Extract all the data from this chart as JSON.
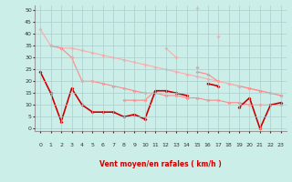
{
  "bg_color": "#cceee8",
  "grid_color": "#aacccc",
  "xlabel": "Vent moyen/en rafales ( km/h )",
  "xlim": [
    -0.5,
    23.5
  ],
  "ylim": [
    -1,
    52
  ],
  "yticks": [
    0,
    5,
    10,
    15,
    20,
    25,
    30,
    35,
    40,
    45,
    50
  ],
  "xticks": [
    0,
    1,
    2,
    3,
    4,
    5,
    6,
    7,
    8,
    9,
    10,
    11,
    12,
    13,
    14,
    15,
    16,
    17,
    18,
    19,
    20,
    21,
    22,
    23
  ],
  "series": [
    {
      "color": "#ffaaaa",
      "lw": 0.8,
      "ms": 2.0,
      "values": [
        42,
        35,
        34,
        34,
        33,
        32,
        31,
        30,
        29,
        28,
        27,
        26,
        25,
        24,
        23,
        22,
        21,
        20,
        19,
        18,
        17,
        16,
        15,
        14
      ]
    },
    {
      "color": "#ffaaaa",
      "lw": 0.8,
      "ms": 2.0,
      "values": [
        null,
        null,
        null,
        null,
        null,
        null,
        null,
        null,
        null,
        null,
        null,
        null,
        34,
        30,
        null,
        51,
        null,
        39,
        null,
        null,
        null,
        null,
        null,
        null
      ]
    },
    {
      "color": "#ff8888",
      "lw": 0.8,
      "ms": 2.0,
      "values": [
        null,
        35,
        34,
        30,
        20,
        20,
        19,
        18,
        17,
        16,
        15,
        15,
        14,
        14,
        13,
        13,
        12,
        12,
        11,
        11,
        10,
        10,
        10,
        10
      ]
    },
    {
      "color": "#ff8888",
      "lw": 0.8,
      "ms": 2.0,
      "values": [
        null,
        null,
        null,
        null,
        null,
        null,
        null,
        null,
        null,
        null,
        null,
        null,
        null,
        null,
        null,
        26,
        null,
        null,
        null,
        null,
        null,
        null,
        null,
        null
      ]
    },
    {
      "color": "#ff8888",
      "lw": 0.8,
      "ms": 2.0,
      "values": [
        null,
        null,
        null,
        null,
        null,
        null,
        null,
        null,
        12,
        12,
        12,
        16,
        16,
        15,
        null,
        24,
        23,
        20,
        null,
        18,
        17,
        16,
        15,
        14
      ]
    },
    {
      "color": "#ffaaaa",
      "lw": 0.8,
      "ms": 2.0,
      "values": [
        null,
        null,
        null,
        null,
        null,
        null,
        null,
        null,
        null,
        null,
        null,
        null,
        null,
        null,
        null,
        null,
        null,
        null,
        19,
        18,
        null,
        null,
        null,
        null
      ]
    },
    {
      "color": "#cc0000",
      "lw": 1.2,
      "ms": 2.0,
      "values": [
        24,
        15,
        3,
        17,
        10,
        7,
        7,
        7,
        5,
        6,
        4,
        16,
        16,
        15,
        14,
        null,
        null,
        null,
        null,
        null,
        null,
        null,
        null,
        null
      ]
    },
    {
      "color": "#cc0000",
      "lw": 1.2,
      "ms": 2.0,
      "values": [
        null,
        null,
        null,
        null,
        null,
        null,
        null,
        null,
        null,
        null,
        null,
        null,
        null,
        null,
        null,
        null,
        19,
        18,
        null,
        9,
        13,
        0,
        10,
        11
      ]
    }
  ],
  "arrows": [
    "↑",
    "↖",
    "↑",
    "↗",
    "↗",
    "↓",
    "↙",
    "↓",
    "↓",
    "↑",
    "↖",
    "↑",
    "↑",
    "↖",
    "↓",
    "↑",
    "↖",
    "↖",
    "←",
    "←",
    "↓",
    "↘",
    "←",
    "←"
  ]
}
